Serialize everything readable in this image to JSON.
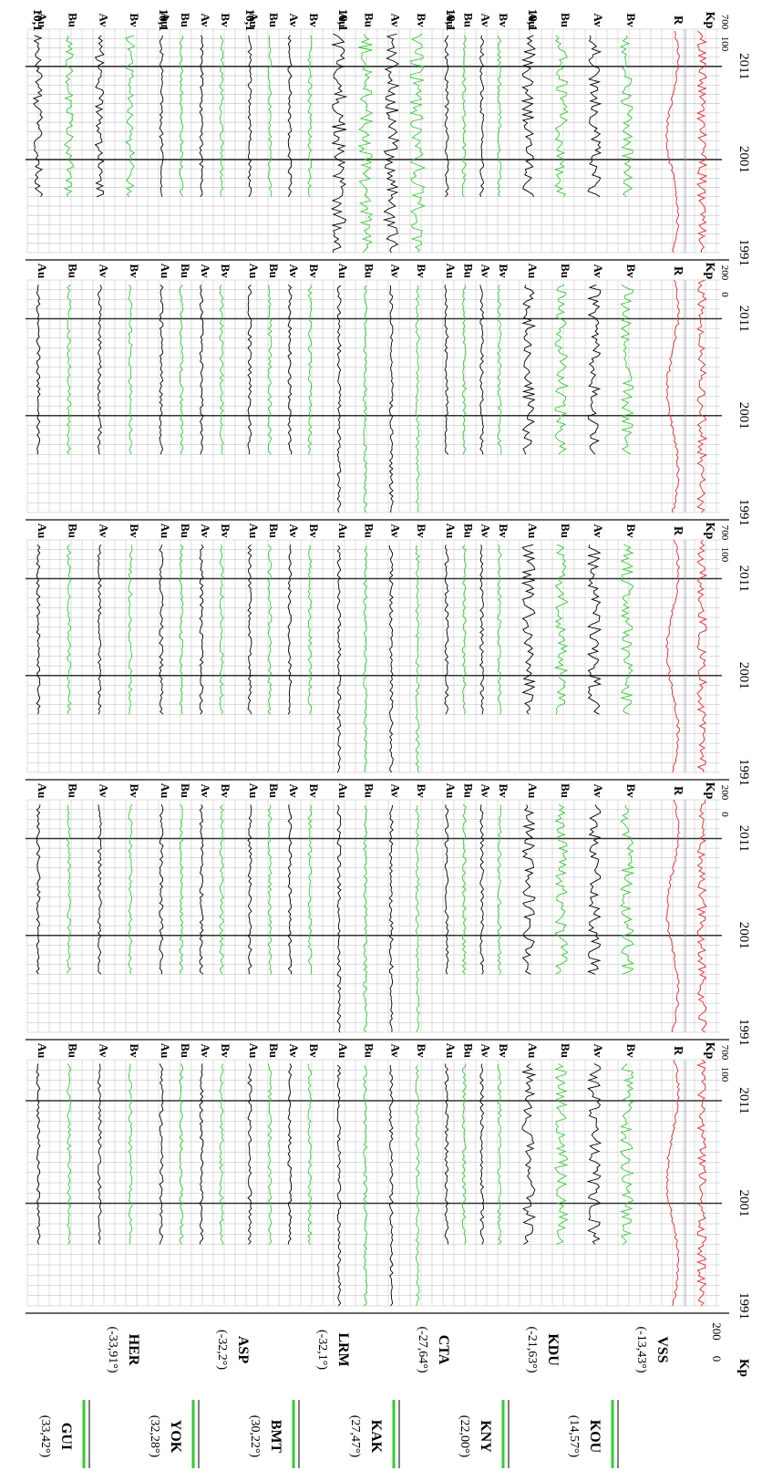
{
  "chart_data": {
    "type": "line",
    "orientation": "rotated-90",
    "x_ticks": [
      "1991",
      "2001",
      "2011"
    ],
    "x_range": [
      1991,
      2015
    ],
    "grid": true,
    "colors": {
      "northern_series": "#000000",
      "southern_series": "#33cc33",
      "index_series": "#e8383d",
      "year_lines": "#333333",
      "grid": "#bbbbbb"
    },
    "station_pairs": [
      {
        "north": "GUI",
        "north_lat": "(33,42°)",
        "south": "HER",
        "south_lat": "(-33,91°)"
      },
      {
        "north": "YOK",
        "north_lat": "(32,28°)",
        "south": "ASP",
        "south_lat": "(-32,2°)"
      },
      {
        "north": "BMT",
        "north_lat": "(30,22°)",
        "south": "LRM",
        "south_lat": "(-32,1°)"
      },
      {
        "north": "KAK",
        "north_lat": "(27,47°)",
        "south": "CTA",
        "south_lat": "(-27,64°)"
      },
      {
        "north": "KNY",
        "north_lat": "(22,00°)",
        "south": "KDU",
        "south_lat": "(-21,63°)"
      },
      {
        "north": "KOU",
        "north_lat": "(14,57°)",
        "south": "VSS",
        "south_lat": "(-13,43°)"
      }
    ],
    "series_labels": [
      "A_u",
      "B_u",
      "A_v",
      "B_v"
    ],
    "index_panel": {
      "R_label": "R",
      "Kp_label": "Kp",
      "R_tick": "200",
      "Kp_tick": "0",
      "R_tick_alt": "700",
      "Kp_tick_alt": "100"
    },
    "panel_top_labels": [
      "10,1",
      "10,1",
      "10,1",
      "10,1",
      "10,1",
      "10,1"
    ],
    "columns": 5
  }
}
